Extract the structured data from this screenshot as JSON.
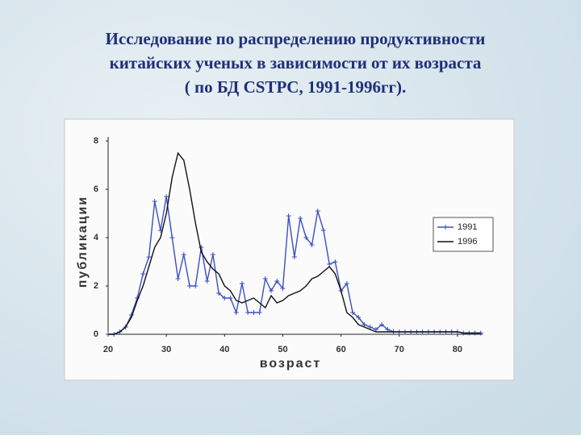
{
  "chart_data": {
    "type": "line",
    "title": [
      "Исследование по распределению продуктивности",
      "китайских ученых в зависимости от их возраста",
      "( по БД CSTPC, 1991-1996гг)."
    ],
    "x_label": "возраст",
    "y_label": "публикации",
    "x": [
      20,
      21,
      22,
      23,
      24,
      25,
      26,
      27,
      28,
      29,
      30,
      31,
      32,
      33,
      34,
      35,
      36,
      37,
      38,
      39,
      40,
      41,
      42,
      43,
      44,
      45,
      46,
      47,
      48,
      49,
      50,
      51,
      52,
      53,
      54,
      55,
      56,
      57,
      58,
      59,
      60,
      61,
      62,
      63,
      64,
      65,
      66,
      67,
      68,
      69,
      70,
      71,
      72,
      73,
      74,
      75,
      76,
      77,
      78,
      79,
      80,
      81,
      82,
      83,
      84
    ],
    "series": [
      {
        "name": "1991",
        "color": "#3b4fc4",
        "marker": "plus",
        "values": [
          0,
          0,
          0.1,
          0.3,
          0.8,
          1.5,
          2.5,
          3.2,
          5.5,
          4.3,
          5.7,
          4.0,
          2.3,
          3.3,
          2.0,
          2.0,
          3.6,
          2.2,
          3.3,
          1.7,
          1.5,
          1.5,
          0.9,
          2.1,
          0.9,
          0.9,
          0.9,
          2.3,
          1.8,
          2.2,
          1.9,
          4.9,
          3.2,
          4.8,
          4.0,
          3.7,
          5.1,
          4.3,
          2.9,
          3.0,
          1.8,
          2.1,
          0.9,
          0.7,
          0.4,
          0.3,
          0.2,
          0.4,
          0.2,
          0.1,
          0.1,
          0.1,
          0.1,
          0.1,
          0.1,
          0.1,
          0.1,
          0.1,
          0.1,
          0.1,
          0.1,
          0.05,
          0.05,
          0.05,
          0.05
        ]
      },
      {
        "name": "1996",
        "color": "#111111",
        "marker": "none",
        "values": [
          0,
          0,
          0.1,
          0.3,
          0.7,
          1.4,
          2.0,
          2.8,
          3.6,
          4.0,
          5.0,
          6.5,
          7.5,
          7.2,
          6.0,
          4.6,
          3.4,
          3.0,
          2.7,
          2.5,
          2.0,
          1.8,
          1.4,
          1.3,
          1.4,
          1.5,
          1.3,
          1.1,
          1.6,
          1.3,
          1.4,
          1.6,
          1.7,
          1.8,
          2.0,
          2.3,
          2.4,
          2.6,
          2.8,
          2.5,
          1.8,
          0.9,
          0.7,
          0.4,
          0.3,
          0.2,
          0.1,
          0.1,
          0.1,
          0.1,
          0.1,
          0.1,
          0.1,
          0.1,
          0.1,
          0.1,
          0.1,
          0.1,
          0.1,
          0.1,
          0.1,
          0.05,
          0.05,
          0.05,
          0.05
        ]
      }
    ],
    "xlim": [
      20,
      85
    ],
    "xticks": [
      20,
      30,
      40,
      50,
      60,
      70,
      80
    ],
    "ylim": [
      0,
      8
    ],
    "yticks": [
      0,
      2,
      4,
      6,
      8
    ],
    "grid": false,
    "legend": "right"
  }
}
